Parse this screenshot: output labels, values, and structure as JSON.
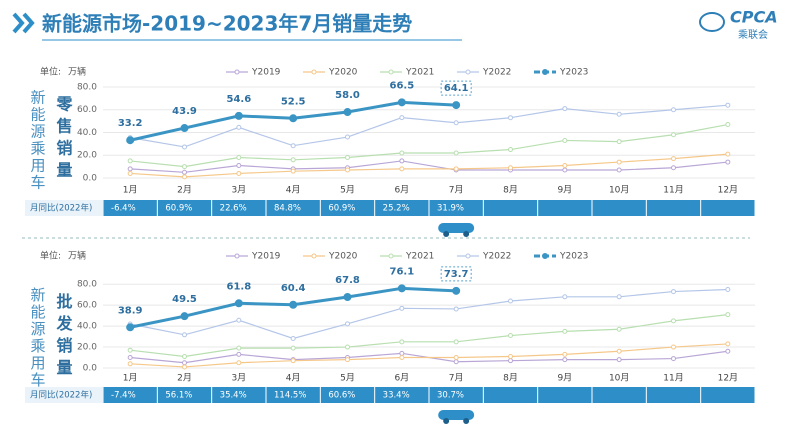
{
  "header": {
    "title": "新能源市场-2019~2023年7月销量走势",
    "logo": "CPCA",
    "logo_sub": "乘联会"
  },
  "chart_data": [
    {
      "type": "line",
      "side_label": "新能源乘用车",
      "ylabel": "零售销量",
      "unit_label": "单位:",
      "unit": "万辆",
      "categories": [
        "1月",
        "2月",
        "3月",
        "4月",
        "5月",
        "6月",
        "7月",
        "8月",
        "9月",
        "10月",
        "11月",
        "12月"
      ],
      "ylim": [
        0,
        85
      ],
      "yticks": [
        {
          "value": 0,
          "label": "0.0"
        },
        {
          "value": 20,
          "label": "20.0"
        },
        {
          "value": 40,
          "label": "40.0"
        },
        {
          "value": 60,
          "label": "60.0"
        },
        {
          "value": 80,
          "label": "80.0"
        }
      ],
      "grid": true,
      "series": [
        {
          "name": "Y2019",
          "color": "#b9a6d6",
          "values": [
            8,
            5,
            11,
            8,
            9,
            15,
            7,
            7,
            7,
            7,
            9,
            14
          ]
        },
        {
          "name": "Y2020",
          "color": "#f5c88a",
          "values": [
            4,
            1,
            4,
            6,
            7,
            8,
            8,
            9,
            11,
            14,
            17,
            21
          ]
        },
        {
          "name": "Y2021",
          "color": "#b8dfb0",
          "values": [
            15,
            10,
            18,
            16,
            18,
            22,
            22,
            25,
            33,
            32,
            38,
            47
          ]
        },
        {
          "name": "Y2022",
          "color": "#b4c6e8",
          "values": [
            35.5,
            27.3,
            44.5,
            28.4,
            36,
            53.1,
            48.6,
            53,
            61,
            56,
            60,
            64
          ]
        },
        {
          "name": "Y2023",
          "color": "#3b95c4",
          "values": [
            33.2,
            43.9,
            54.6,
            52.5,
            58.0,
            66.5,
            64.1,
            null,
            null,
            null,
            null,
            null
          ],
          "value_labels": [
            "33.2",
            "43.9",
            "54.6",
            "52.5",
            "58.0",
            "66.5",
            "64.1",
            null,
            null,
            null,
            null,
            null
          ]
        }
      ],
      "yoy_title": "月同比(2022年)",
      "yoy": [
        "-6.4%",
        "60.9%",
        "22.6%",
        "84.8%",
        "60.9%",
        "25.2%",
        "31.9%",
        null,
        null,
        null,
        null,
        null
      ]
    },
    {
      "type": "line",
      "side_label": "新能源乘用车",
      "ylabel": "批发销量",
      "unit_label": "单位:",
      "unit": "万辆",
      "categories": [
        "1月",
        "2月",
        "3月",
        "4月",
        "5月",
        "6月",
        "7月",
        "8月",
        "9月",
        "10月",
        "11月",
        "12月"
      ],
      "ylim": [
        0,
        85
      ],
      "yticks": [
        {
          "value": 0,
          "label": "0.0"
        },
        {
          "value": 20,
          "label": "20.0"
        },
        {
          "value": 40,
          "label": "40.0"
        },
        {
          "value": 60,
          "label": "60.0"
        },
        {
          "value": 80,
          "label": "80.0"
        }
      ],
      "grid": true,
      "series": [
        {
          "name": "Y2019",
          "color": "#b9a6d6",
          "values": [
            10,
            5,
            13,
            8,
            10,
            14,
            6,
            7,
            8,
            8,
            9,
            16
          ]
        },
        {
          "name": "Y2020",
          "color": "#f5c88a",
          "values": [
            4,
            1,
            5,
            7,
            8,
            10,
            10,
            11,
            13,
            16,
            20,
            23
          ]
        },
        {
          "name": "Y2021",
          "color": "#b8dfb0",
          "values": [
            17,
            11,
            19,
            19,
            20,
            25,
            25,
            31,
            35,
            37,
            45,
            51
          ]
        },
        {
          "name": "Y2022",
          "color": "#b4c6e8",
          "values": [
            42,
            31.7,
            45.6,
            28.2,
            42.2,
            57,
            56.4,
            64,
            68,
            68,
            73,
            75
          ]
        },
        {
          "name": "Y2023",
          "color": "#3b95c4",
          "values": [
            38.9,
            49.5,
            61.8,
            60.4,
            67.8,
            76.1,
            73.7,
            null,
            null,
            null,
            null,
            null
          ],
          "value_labels": [
            "38.9",
            "49.5",
            "61.8",
            "60.4",
            "67.8",
            "76.1",
            "73.7",
            null,
            null,
            null,
            null,
            null
          ]
        }
      ],
      "yoy_title": "月同比(2022年)",
      "yoy": [
        "-7.4%",
        "56.1%",
        "35.4%",
        "114.5%",
        "60.6%",
        "33.4%",
        "30.7%",
        null,
        null,
        null,
        null,
        null
      ]
    }
  ]
}
